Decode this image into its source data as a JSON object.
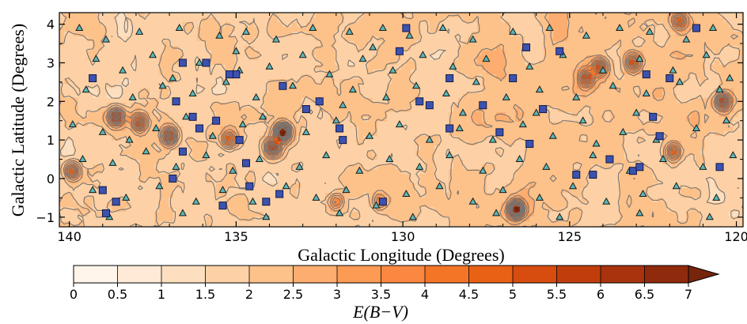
{
  "chart_data": {
    "type": "scatter",
    "xlabel": "Galactic Longitude (Degrees)",
    "ylabel": "Galactic Latitude (Degrees)",
    "xlim": [
      140.3,
      119.8
    ],
    "ylim": [
      -1.25,
      4.3
    ],
    "x_ticks": [
      140,
      135,
      130,
      125,
      120
    ],
    "y_ticks": [
      -1,
      0,
      1,
      2,
      3,
      4
    ],
    "x_tick_labels": [
      "140",
      "135",
      "130",
      "125",
      "120"
    ],
    "y_tick_labels": [
      "−1",
      "0",
      "1",
      "2",
      "3",
      "4"
    ],
    "x_reversed": true,
    "background": {
      "type": "heatmap",
      "quantity": "E(B−V)",
      "colormap": "Oranges",
      "contours": true,
      "clumps": [
        {
          "l": 133.6,
          "b": 1.2,
          "strength": 7
        },
        {
          "l": 133.9,
          "b": 0.8,
          "strength": 5
        },
        {
          "l": 138.6,
          "b": 1.6,
          "strength": 5
        },
        {
          "l": 137.0,
          "b": 1.1,
          "strength": 5
        },
        {
          "l": 126.6,
          "b": -0.8,
          "strength": 6.5
        },
        {
          "l": 139.9,
          "b": 0.2,
          "strength": 4
        },
        {
          "l": 137.9,
          "b": 1.45,
          "strength": 4
        },
        {
          "l": 120.4,
          "b": 2.0,
          "strength": 4.5
        },
        {
          "l": 123.1,
          "b": 3.0,
          "strength": 4
        },
        {
          "l": 124.1,
          "b": 2.9,
          "strength": 4
        },
        {
          "l": 124.5,
          "b": 2.6,
          "strength": 3.5
        },
        {
          "l": 121.7,
          "b": 4.1,
          "strength": 3.5
        },
        {
          "l": 121.9,
          "b": 0.7,
          "strength": 3.5
        },
        {
          "l": 135.2,
          "b": 1.0,
          "strength": 3.5
        },
        {
          "l": 130.7,
          "b": -0.6,
          "strength": 2.5
        },
        {
          "l": 132.0,
          "b": -0.6,
          "strength": 2.5
        }
      ]
    },
    "series": [
      {
        "marker": "triangle",
        "color": "#5bb8b9",
        "points": [
          [
            139.7,
            3.9
          ],
          [
            138.9,
            3.6
          ],
          [
            137.9,
            3.8
          ],
          [
            136.7,
            3.9
          ],
          [
            135.5,
            3.7
          ],
          [
            134.7,
            3.8
          ],
          [
            133.8,
            3.6
          ],
          [
            132.7,
            3.9
          ],
          [
            131.6,
            3.8
          ],
          [
            130.6,
            3.9
          ],
          [
            129.8,
            3.7
          ],
          [
            128.8,
            3.9
          ],
          [
            127.9,
            3.6
          ],
          [
            126.7,
            3.8
          ],
          [
            125.6,
            3.9
          ],
          [
            124.5,
            3.7
          ],
          [
            123.5,
            3.9
          ],
          [
            122.6,
            3.8
          ],
          [
            121.5,
            3.6
          ],
          [
            120.7,
            3.9
          ],
          [
            139.2,
            3.1
          ],
          [
            138.4,
            2.8
          ],
          [
            137.5,
            3.2
          ],
          [
            136.1,
            3.0
          ],
          [
            135.0,
            3.3
          ],
          [
            134.0,
            2.9
          ],
          [
            133.0,
            3.2
          ],
          [
            132.2,
            2.7
          ],
          [
            131.2,
            3.1
          ],
          [
            130.3,
            2.8
          ],
          [
            129.4,
            3.2
          ],
          [
            128.5,
            2.9
          ],
          [
            127.5,
            3.1
          ],
          [
            126.2,
            2.9
          ],
          [
            125.2,
            3.2
          ],
          [
            124.0,
            2.8
          ],
          [
            122.9,
            3.1
          ],
          [
            121.9,
            2.8
          ],
          [
            120.9,
            3.2
          ],
          [
            120.2,
            2.6
          ],
          [
            139.5,
            2.3
          ],
          [
            138.1,
            2.1
          ],
          [
            137.2,
            2.4
          ],
          [
            136.3,
            2.2
          ],
          [
            135.3,
            2.5
          ],
          [
            134.4,
            2.1
          ],
          [
            133.3,
            2.4
          ],
          [
            132.5,
            2.0
          ],
          [
            131.5,
            2.3
          ],
          [
            130.5,
            2.1
          ],
          [
            129.6,
            2.4
          ],
          [
            128.7,
            2.2
          ],
          [
            127.8,
            2.5
          ],
          [
            126.9,
            2.1
          ],
          [
            125.9,
            2.3
          ],
          [
            124.8,
            2.1
          ],
          [
            123.7,
            2.4
          ],
          [
            122.7,
            2.2
          ],
          [
            121.7,
            2.5
          ],
          [
            120.5,
            2.3
          ],
          [
            139.9,
            1.4
          ],
          [
            139.0,
            1.2
          ],
          [
            138.2,
            1.0
          ],
          [
            137.4,
            1.3
          ],
          [
            136.5,
            1.6
          ],
          [
            135.7,
            1.1
          ],
          [
            134.8,
            1.4
          ],
          [
            134.2,
            1.6
          ],
          [
            132.9,
            1.2
          ],
          [
            132.0,
            1.5
          ],
          [
            131.0,
            1.1
          ],
          [
            130.1,
            1.4
          ],
          [
            129.2,
            1.0
          ],
          [
            128.3,
            1.3
          ],
          [
            127.3,
            1.0
          ],
          [
            126.4,
            1.4
          ],
          [
            125.5,
            1.1
          ],
          [
            124.6,
            1.5
          ],
          [
            123.4,
            1.2
          ],
          [
            122.4,
            1.0
          ],
          [
            121.2,
            1.3
          ],
          [
            120.3,
            1.5
          ],
          [
            139.6,
            0.5
          ],
          [
            138.7,
            0.4
          ],
          [
            137.7,
            0.7
          ],
          [
            136.8,
            0.3
          ],
          [
            135.9,
            0.6
          ],
          [
            135.1,
            0.2
          ],
          [
            134.3,
            0.5
          ],
          [
            133.1,
            0.3
          ],
          [
            132.3,
            0.6
          ],
          [
            131.3,
            0.2
          ],
          [
            130.4,
            0.5
          ],
          [
            129.5,
            0.3
          ],
          [
            128.6,
            0.6
          ],
          [
            127.6,
            0.2
          ],
          [
            126.5,
            0.5
          ],
          [
            125.7,
            0.3
          ],
          [
            124.3,
            0.6
          ],
          [
            123.2,
            0.2
          ],
          [
            122.2,
            0.5
          ],
          [
            121.0,
            0.3
          ],
          [
            120.1,
            0.6
          ],
          [
            139.3,
            -0.3
          ],
          [
            138.3,
            -0.5
          ],
          [
            137.3,
            -0.2
          ],
          [
            136.2,
            -0.6
          ],
          [
            135.4,
            -0.3
          ],
          [
            134.5,
            -0.6
          ],
          [
            133.5,
            -0.2
          ],
          [
            132.6,
            -0.5
          ],
          [
            131.7,
            -0.3
          ],
          [
            130.8,
            -0.7
          ],
          [
            129.9,
            -0.4
          ],
          [
            128.9,
            -0.2
          ],
          [
            127.9,
            -0.6
          ],
          [
            127.0,
            -0.3
          ],
          [
            125.9,
            -0.5
          ],
          [
            124.9,
            -0.2
          ],
          [
            123.9,
            -0.6
          ],
          [
            122.8,
            -0.4
          ],
          [
            121.8,
            -0.2
          ],
          [
            120.6,
            -0.5
          ],
          [
            138.8,
            -1.0
          ],
          [
            136.6,
            -0.9
          ],
          [
            134.1,
            -1.0
          ],
          [
            131.9,
            -0.9
          ],
          [
            129.7,
            -1.0
          ],
          [
            127.2,
            -0.9
          ],
          [
            125.3,
            -1.0
          ],
          [
            122.9,
            -0.9
          ],
          [
            120.8,
            -1.0
          ],
          [
            130.9,
            3.4
          ],
          [
            128.2,
            1.7
          ],
          [
            126.0,
            1.7
          ],
          [
            123.0,
            1.7
          ],
          [
            131.8,
            1.9
          ],
          [
            134.9,
            2.8
          ],
          [
            136.9,
            2.6
          ],
          [
            124.2,
            0.9
          ]
        ]
      },
      {
        "marker": "square",
        "color": "#3c52b0",
        "points": [
          [
            139.3,
            2.6
          ],
          [
            136.6,
            3.0
          ],
          [
            135.9,
            3.0
          ],
          [
            135.0,
            2.7
          ],
          [
            133.6,
            2.4
          ],
          [
            132.9,
            1.8
          ],
          [
            131.9,
            1.3
          ],
          [
            131.8,
            1.0
          ],
          [
            130.1,
            3.3
          ],
          [
            129.9,
            3.9
          ],
          [
            129.5,
            2.0
          ],
          [
            128.6,
            2.6
          ],
          [
            128.6,
            1.3
          ],
          [
            129.2,
            1.9
          ],
          [
            127.1,
            1.2
          ],
          [
            126.7,
            2.6
          ],
          [
            126.3,
            3.4
          ],
          [
            125.8,
            1.8
          ],
          [
            125.3,
            3.3
          ],
          [
            124.8,
            0.1
          ],
          [
            124.3,
            0.1
          ],
          [
            123.8,
            0.5
          ],
          [
            123.1,
            0.2
          ],
          [
            122.9,
            0.3
          ],
          [
            122.7,
            2.7
          ],
          [
            122.5,
            1.6
          ],
          [
            122.3,
            1.1
          ],
          [
            122.0,
            2.6
          ],
          [
            121.2,
            3.9
          ],
          [
            120.5,
            0.3
          ],
          [
            136.8,
            2.0
          ],
          [
            136.3,
            1.6
          ],
          [
            136.1,
            1.3
          ],
          [
            135.6,
            1.5
          ],
          [
            135.2,
            2.7
          ],
          [
            134.9,
            1.0
          ],
          [
            134.7,
            0.4
          ],
          [
            134.1,
            -0.6
          ],
          [
            133.7,
            -0.4
          ],
          [
            134.6,
            -0.2
          ],
          [
            136.6,
            0.7
          ],
          [
            136.9,
            0.0
          ],
          [
            138.9,
            -0.9
          ],
          [
            138.6,
            -0.6
          ],
          [
            139.0,
            -0.3
          ],
          [
            135.4,
            -0.7
          ],
          [
            130.6,
            -0.6
          ],
          [
            126.2,
            0.9
          ],
          [
            127.6,
            1.9
          ],
          [
            132.5,
            2.0
          ]
        ]
      }
    ],
    "colorbar": {
      "label": "E(B−V)",
      "ticks": [
        0,
        0.5,
        1,
        1.5,
        2,
        2.5,
        3,
        3.5,
        4,
        4.5,
        5,
        5.5,
        6,
        6.5,
        7
      ],
      "tick_labels": [
        "0",
        "0.5",
        "1",
        "1.5",
        "2",
        "2.5",
        "3",
        "3.5",
        "4",
        "4.5",
        "5",
        "5.5",
        "6",
        "6.5",
        "7"
      ],
      "range": [
        0,
        7
      ],
      "extend": "max",
      "colors": [
        "#fff5eb",
        "#feead6",
        "#fddfbf",
        "#fdd1a5",
        "#fdc18a",
        "#fdad6f",
        "#fd9a54",
        "#fb8740",
        "#f57527",
        "#e86115",
        "#d64d0f",
        "#c13e0c",
        "#a8330d",
        "#8f2a0d",
        "#76240c"
      ]
    }
  }
}
